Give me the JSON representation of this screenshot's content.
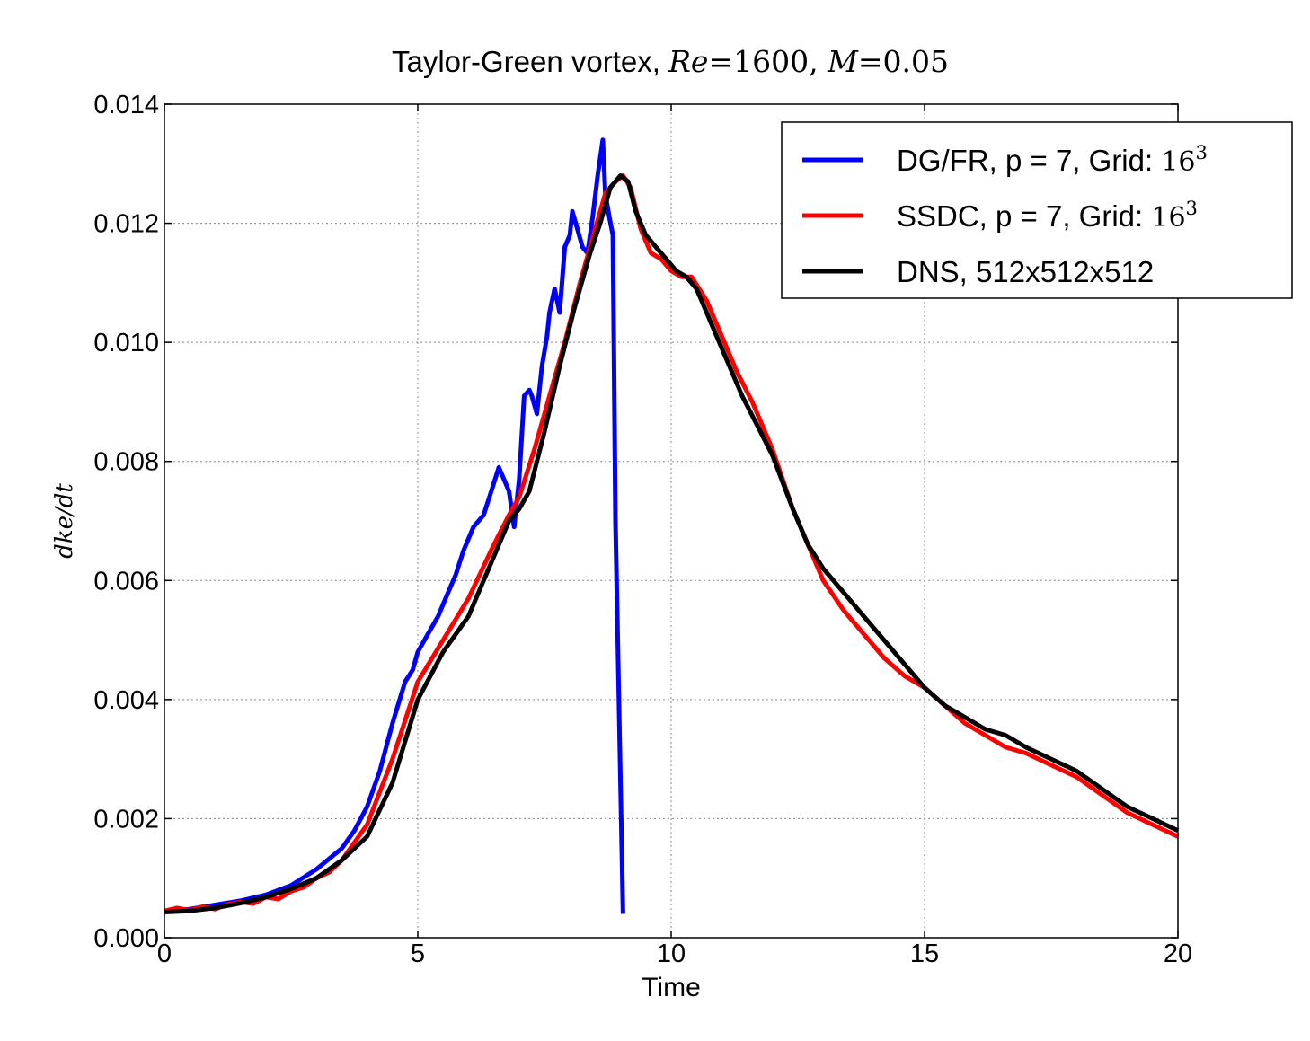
{
  "chart_data": {
    "type": "line",
    "title": {
      "text_prefix": "Taylor-Green vortex, ",
      "re_symbol": "Re",
      "re_value": "=1600, ",
      "m_symbol": "M",
      "m_value": "=0.05"
    },
    "xlabel": "Time",
    "ylabel": "dke/dt",
    "xlim": [
      0,
      20
    ],
    "ylim": [
      0,
      0.014
    ],
    "x_ticks": [
      "0",
      "5",
      "10",
      "15",
      "20"
    ],
    "y_ticks": [
      "0.000",
      "0.002",
      "0.004",
      "0.006",
      "0.008",
      "0.010",
      "0.012",
      "0.014"
    ],
    "grid": true,
    "legend_position": "top-right",
    "series": [
      {
        "name": "DG/FR, p = 7, Grid: 16³",
        "legend_text": "DG/FR, p = 7, Grid: ",
        "legend_math": "16",
        "legend_sup": "3",
        "color": "#0000ff",
        "x": [
          0,
          0.5,
          1.0,
          1.5,
          2.0,
          2.5,
          3.0,
          3.5,
          3.75,
          4.0,
          4.25,
          4.5,
          4.75,
          4.9,
          5.0,
          5.2,
          5.4,
          5.6,
          5.75,
          5.9,
          6.1,
          6.3,
          6.45,
          6.6,
          6.7,
          6.8,
          6.9,
          7.0,
          7.1,
          7.2,
          7.25,
          7.35,
          7.45,
          7.55,
          7.6,
          7.7,
          7.8,
          7.9,
          8.0,
          8.05,
          8.15,
          8.25,
          8.35,
          8.45,
          8.55,
          8.65,
          8.7,
          8.78,
          8.85,
          8.9,
          9.05
        ],
        "values": [
          0.00045,
          0.00048,
          0.00055,
          0.00062,
          0.00072,
          0.00088,
          0.00115,
          0.0015,
          0.0018,
          0.0022,
          0.0028,
          0.0036,
          0.0043,
          0.0045,
          0.0048,
          0.0051,
          0.0054,
          0.0058,
          0.0061,
          0.0065,
          0.0069,
          0.0071,
          0.0075,
          0.0079,
          0.0077,
          0.0075,
          0.0069,
          0.0077,
          0.0091,
          0.0092,
          0.0091,
          0.0088,
          0.0096,
          0.0101,
          0.0105,
          0.0109,
          0.0105,
          0.0116,
          0.0118,
          0.0122,
          0.0119,
          0.0116,
          0.0115,
          0.0121,
          0.0128,
          0.0134,
          0.0125,
          0.0121,
          0.0118,
          0.007,
          0.0004
        ]
      },
      {
        "name": "SSDC, p = 7, Grid: 16³",
        "legend_text": "SSDC, p = 7, Grid: ",
        "legend_math": "16",
        "legend_sup": "3",
        "color": "#ff0000",
        "x": [
          0,
          0.25,
          0.5,
          0.75,
          1.0,
          1.25,
          1.5,
          1.75,
          2.0,
          2.25,
          2.5,
          2.75,
          3.0,
          3.25,
          3.5,
          3.75,
          4.0,
          4.5,
          5.0,
          5.5,
          6.0,
          6.5,
          6.8,
          7.0,
          7.3,
          7.6,
          7.9,
          8.2,
          8.5,
          8.7,
          8.9,
          9.05,
          9.2,
          9.4,
          9.6,
          9.8,
          10.0,
          10.2,
          10.4,
          10.7,
          11.0,
          11.3,
          11.6,
          12.0,
          12.4,
          12.7,
          13.0,
          13.4,
          13.8,
          14.2,
          14.6,
          15.0,
          15.4,
          15.8,
          16.2,
          16.6,
          17.0,
          17.5,
          18.0,
          18.5,
          19.0,
          19.5,
          20.0
        ],
        "values": [
          0.00045,
          0.0005,
          0.00046,
          0.00052,
          0.00048,
          0.00056,
          0.0006,
          0.00057,
          0.00068,
          0.00065,
          0.00078,
          0.00085,
          0.001,
          0.0011,
          0.0013,
          0.0016,
          0.0019,
          0.003,
          0.0043,
          0.005,
          0.0057,
          0.0066,
          0.0071,
          0.0074,
          0.0082,
          0.0091,
          0.01,
          0.011,
          0.0119,
          0.0125,
          0.0127,
          0.0128,
          0.0126,
          0.0119,
          0.0115,
          0.0114,
          0.0112,
          0.0111,
          0.0111,
          0.0107,
          0.0101,
          0.0095,
          0.009,
          0.0082,
          0.0072,
          0.0066,
          0.006,
          0.0055,
          0.0051,
          0.0047,
          0.0044,
          0.0042,
          0.0039,
          0.0036,
          0.0034,
          0.0032,
          0.0031,
          0.0029,
          0.0027,
          0.0024,
          0.0021,
          0.0019,
          0.0017
        ]
      },
      {
        "name": "DNS, 512x512x512",
        "legend_text": "DNS, 512x512x512",
        "legend_math": "",
        "legend_sup": "",
        "color": "#000000",
        "x": [
          0,
          0.5,
          1.0,
          1.5,
          2.0,
          2.5,
          3.0,
          3.5,
          4.0,
          4.5,
          5.0,
          5.5,
          6.0,
          6.3,
          6.6,
          6.8,
          7.0,
          7.2,
          7.5,
          7.8,
          8.1,
          8.4,
          8.6,
          8.8,
          9.0,
          9.15,
          9.3,
          9.5,
          9.7,
          9.9,
          10.1,
          10.3,
          10.5,
          10.8,
          11.1,
          11.4,
          11.7,
          12.0,
          12.4,
          12.7,
          13.0,
          13.4,
          13.8,
          14.2,
          14.6,
          15.0,
          15.4,
          15.8,
          16.2,
          16.6,
          17.0,
          17.5,
          18.0,
          18.5,
          19.0,
          19.5,
          20.0
        ],
        "values": [
          0.00043,
          0.00045,
          0.0005,
          0.00058,
          0.00068,
          0.00082,
          0.001,
          0.0013,
          0.0017,
          0.0026,
          0.004,
          0.0048,
          0.0054,
          0.006,
          0.0066,
          0.007,
          0.0072,
          0.0075,
          0.0085,
          0.0096,
          0.0106,
          0.0115,
          0.012,
          0.0126,
          0.0128,
          0.0127,
          0.0122,
          0.0118,
          0.0116,
          0.0114,
          0.0112,
          0.0111,
          0.0109,
          0.0103,
          0.0097,
          0.0091,
          0.0086,
          0.0081,
          0.0072,
          0.0066,
          0.0062,
          0.0058,
          0.0054,
          0.005,
          0.0046,
          0.0042,
          0.0039,
          0.0037,
          0.0035,
          0.0034,
          0.0032,
          0.003,
          0.0028,
          0.0025,
          0.0022,
          0.002,
          0.0018
        ]
      }
    ]
  }
}
